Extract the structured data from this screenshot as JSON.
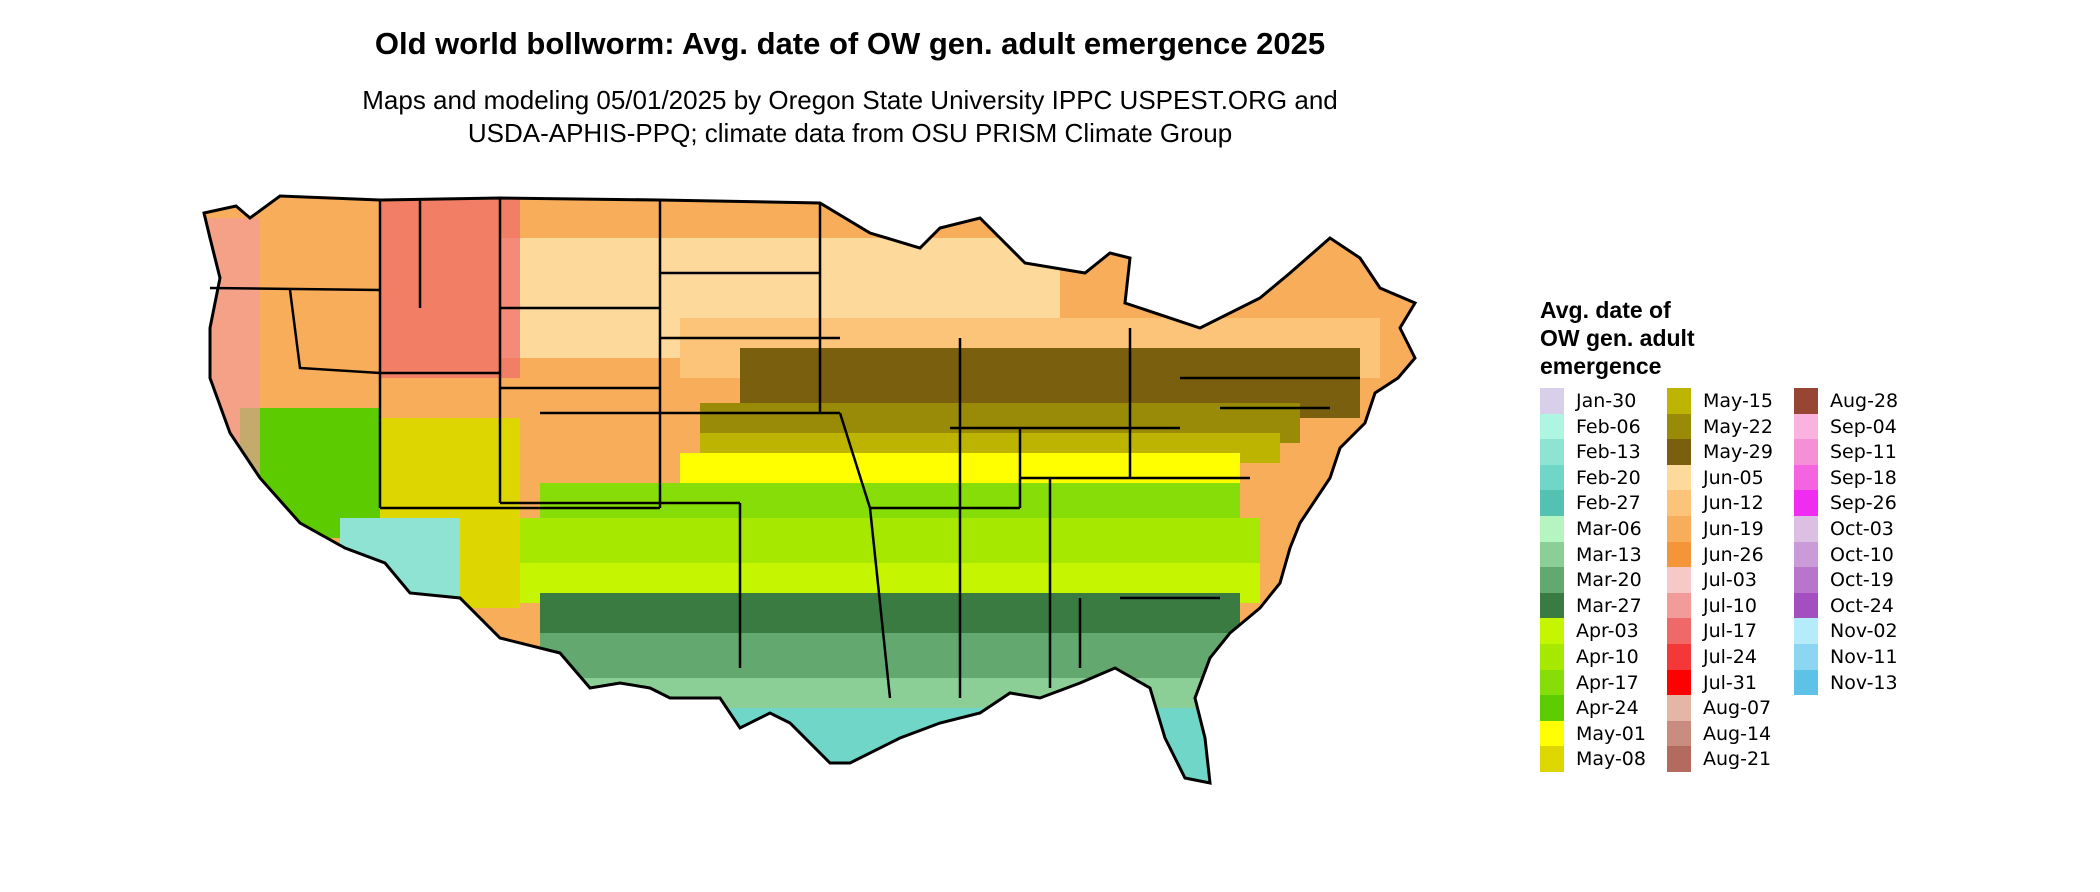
{
  "title": "Old world bollworm: Avg. date of OW gen. adult emergence 2025",
  "subtitle": [
    "Maps and modeling 05/01/2025 by Oregon State University IPPC USPEST.ORG and",
    "USDA-APHIS-PPQ; climate data from OSU PRISM Climate Group"
  ],
  "legend": {
    "title": [
      "Avg. date of",
      "OW gen. adult",
      "emergence"
    ],
    "columns": [
      [
        {
          "label": "Jan-30",
          "color": "#d8d0ea"
        },
        {
          "label": "Feb-06",
          "color": "#aef5e2"
        },
        {
          "label": "Feb-13",
          "color": "#8ee3d2"
        },
        {
          "label": "Feb-20",
          "color": "#6fd6c8"
        },
        {
          "label": "Feb-27",
          "color": "#53c2b3"
        },
        {
          "label": "Mar-06",
          "color": "#b6f5c2"
        },
        {
          "label": "Mar-13",
          "color": "#8ccf96"
        },
        {
          "label": "Mar-20",
          "color": "#63a86e"
        },
        {
          "label": "Mar-27",
          "color": "#3a7b41"
        },
        {
          "label": "Apr-03",
          "color": "#c6f500"
        },
        {
          "label": "Apr-10",
          "color": "#a7e800"
        },
        {
          "label": "Apr-17",
          "color": "#86dd08"
        },
        {
          "label": "Apr-24",
          "color": "#5ccc00"
        },
        {
          "label": "May-01",
          "color": "#ffff00"
        },
        {
          "label": "May-08",
          "color": "#ddd600"
        }
      ],
      [
        {
          "label": "May-15",
          "color": "#bcb400"
        },
        {
          "label": "May-22",
          "color": "#998a07"
        },
        {
          "label": "May-29",
          "color": "#7a5f0e"
        },
        {
          "label": "Jun-05",
          "color": "#fdd99b"
        },
        {
          "label": "Jun-12",
          "color": "#fbc478"
        },
        {
          "label": "Jun-19",
          "color": "#f8ad5a"
        },
        {
          "label": "Jun-26",
          "color": "#f5953a"
        },
        {
          "label": "Jul-03",
          "color": "#f6c8c8"
        },
        {
          "label": "Jul-10",
          "color": "#f29b9b"
        },
        {
          "label": "Jul-17",
          "color": "#f06969"
        },
        {
          "label": "Jul-24",
          "color": "#f43838"
        },
        {
          "label": "Jul-31",
          "color": "#ff0000"
        },
        {
          "label": "Aug-07",
          "color": "#e5b5a8"
        },
        {
          "label": "Aug-14",
          "color": "#c98d7f"
        },
        {
          "label": "Aug-21",
          "color": "#b36b5e"
        }
      ],
      [
        {
          "label": "Aug-28",
          "color": "#984634"
        },
        {
          "label": "Sep-04",
          "color": "#f9b3de"
        },
        {
          "label": "Sep-11",
          "color": "#f58fd6"
        },
        {
          "label": "Sep-18",
          "color": "#f564e0"
        },
        {
          "label": "Sep-26",
          "color": "#f02cf0"
        },
        {
          "label": "Oct-03",
          "color": "#dcc0e2"
        },
        {
          "label": "Oct-10",
          "color": "#cb9ad8"
        },
        {
          "label": "Oct-19",
          "color": "#b975cc"
        },
        {
          "label": "Oct-24",
          "color": "#a44fbf"
        },
        {
          "label": "Nov-02",
          "color": "#b4ecfb"
        },
        {
          "label": "Nov-11",
          "color": "#8cd6f1"
        },
        {
          "label": "Nov-13",
          "color": "#5ec1e6"
        }
      ]
    ]
  },
  "map": {
    "region": "Contiguous United States",
    "state_boundary_color": "#000000",
    "background": "#ffffff"
  }
}
